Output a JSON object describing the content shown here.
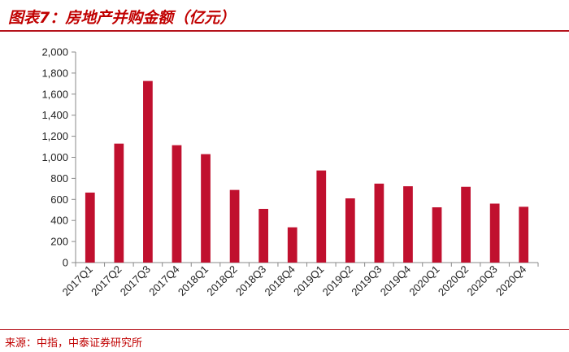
{
  "title": "图表7：房地产并购金额（亿元）",
  "source": "来源：中指，中泰证券研究所",
  "colors": {
    "bar": "#c0102e",
    "accent": "#b5121b",
    "axis": "#888888"
  },
  "chart_data": {
    "type": "bar",
    "categories": [
      "2017Q1",
      "2017Q2",
      "2017Q3",
      "2017Q4",
      "2018Q1",
      "2018Q2",
      "2018Q3",
      "2018Q4",
      "2019Q1",
      "2019Q2",
      "2019Q3",
      "2019Q4",
      "2020Q1",
      "2020Q2",
      "2020Q3",
      "2020Q4"
    ],
    "values": [
      665,
      1130,
      1725,
      1115,
      1030,
      690,
      510,
      335,
      875,
      610,
      750,
      725,
      525,
      720,
      560,
      530
    ],
    "ylim": [
      0,
      2000
    ],
    "yticks": [
      "0",
      "200",
      "400",
      "600",
      "800",
      "1,000",
      "1,200",
      "1,400",
      "1,600",
      "1,800",
      "2,000"
    ],
    "grid": false,
    "title": "",
    "xlabel": "",
    "ylabel": ""
  }
}
